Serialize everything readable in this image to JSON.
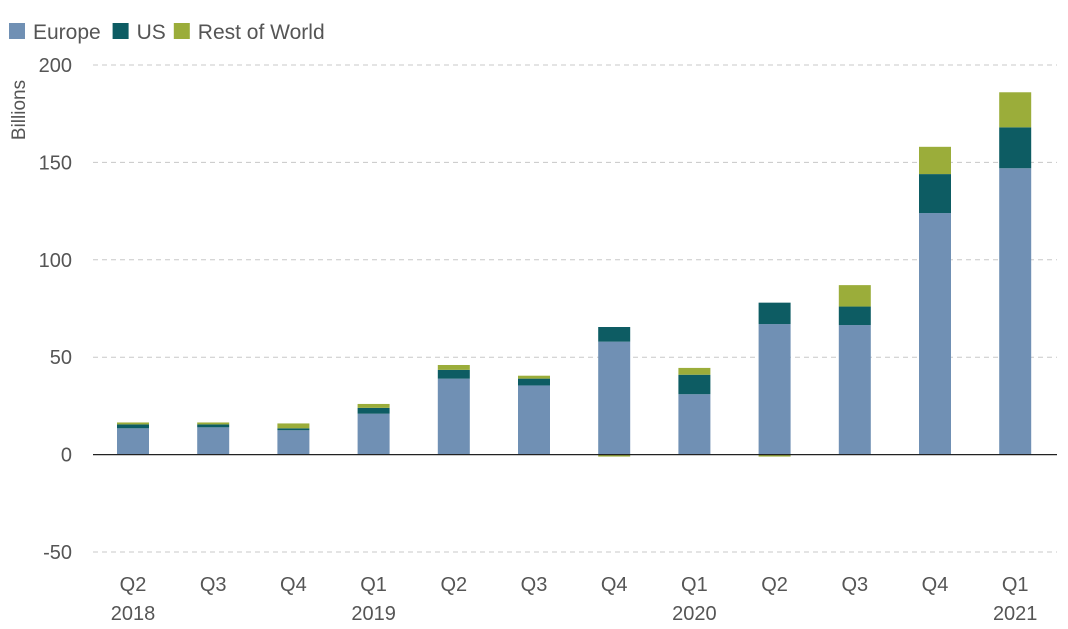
{
  "chart_data": {
    "type": "bar",
    "stacked": true,
    "title": "",
    "ylabel": "Billions",
    "xlabel": "",
    "ylim": [
      -50,
      200
    ],
    "yticks": [
      200,
      150,
      100,
      50,
      0,
      -50
    ],
    "grid": true,
    "legend_position": "top-left",
    "categories": [
      "Q2",
      "Q3",
      "Q4",
      "Q1",
      "Q2",
      "Q3",
      "Q4",
      "Q1",
      "Q2",
      "Q3",
      "Q4",
      "Q1"
    ],
    "years": [
      {
        "label": "2018",
        "category_index": 0
      },
      {
        "label": "2019",
        "category_index": 3
      },
      {
        "label": "2020",
        "category_index": 7
      },
      {
        "label": "2021",
        "category_index": 11
      }
    ],
    "series": [
      {
        "name": "Europe",
        "color": "#7090b4",
        "values": [
          13.5,
          14,
          12.5,
          21,
          39,
          35.5,
          58,
          31,
          67,
          66.5,
          124,
          147
        ]
      },
      {
        "name": "US",
        "color": "#0d5c63",
        "values": [
          2,
          1.5,
          1,
          3,
          4.5,
          3.5,
          7.5,
          10,
          11,
          9.5,
          20,
          21
        ]
      },
      {
        "name": "Rest of World",
        "color": "#9bad3a",
        "values": [
          1,
          1,
          2.5,
          2,
          2.5,
          1.5,
          -1,
          3.5,
          -1,
          11,
          14,
          18
        ]
      }
    ]
  }
}
